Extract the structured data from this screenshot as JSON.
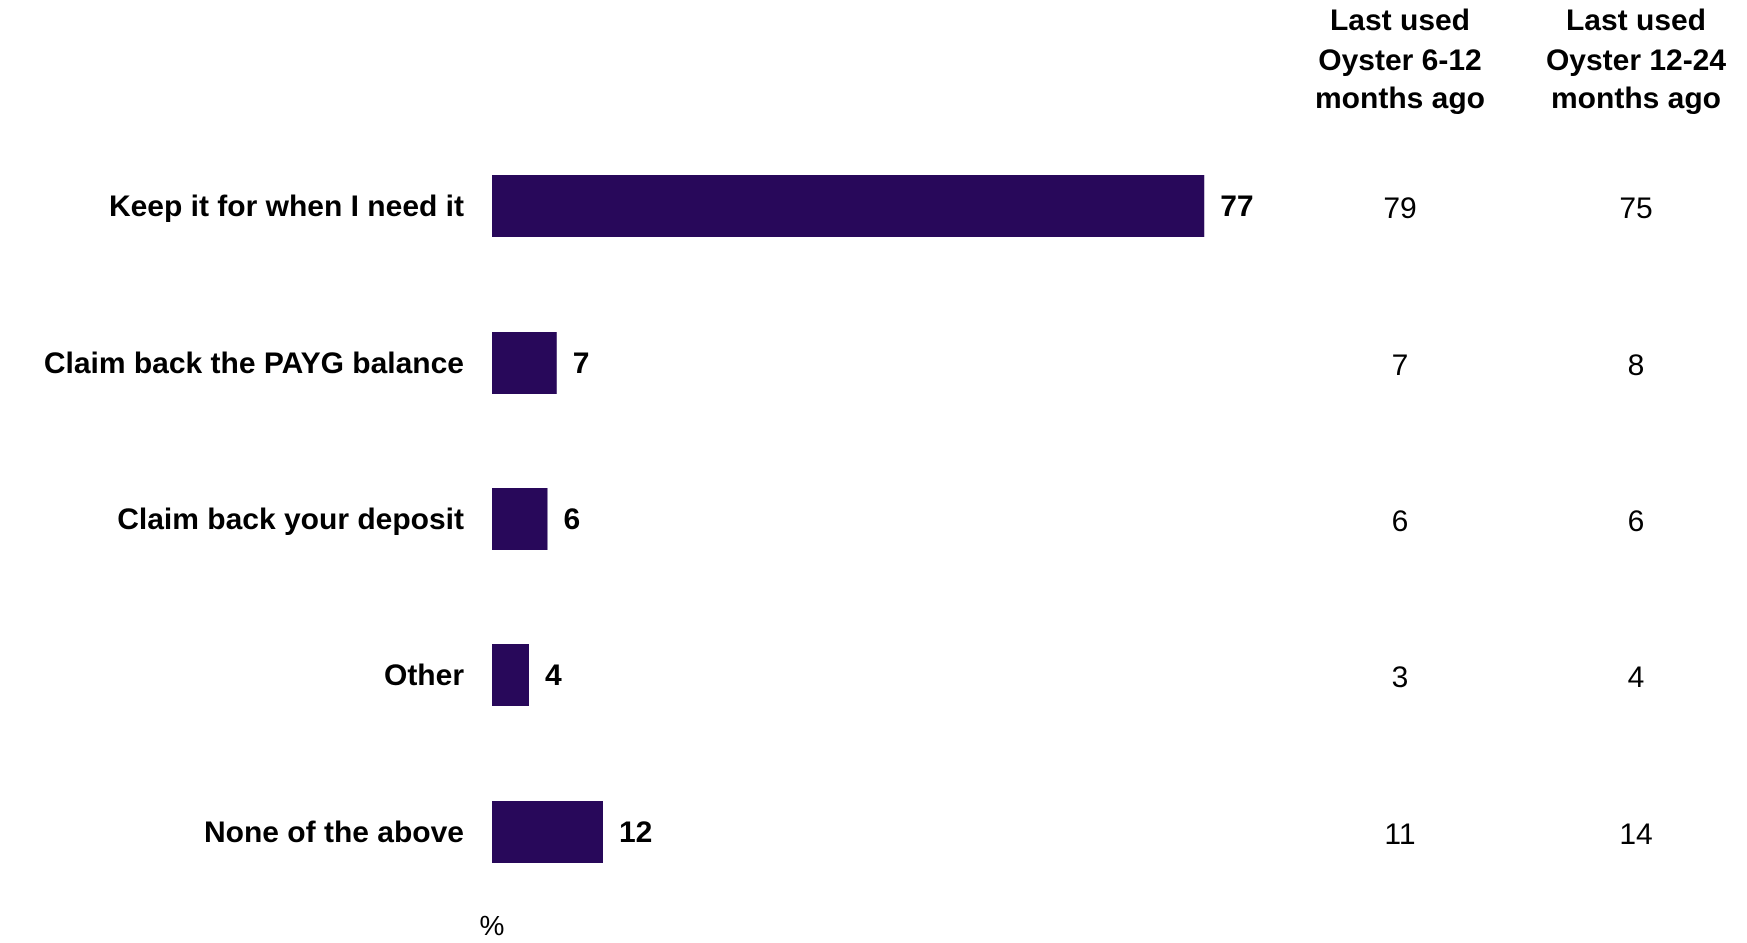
{
  "chart_data": {
    "type": "bar",
    "orientation": "horizontal",
    "unit": "%",
    "categories": [
      "Keep it for when I need it",
      "Claim back the PAYG balance",
      "Claim back your deposit",
      "Other",
      "None of the above"
    ],
    "values": [
      77,
      7,
      6,
      4,
      12
    ],
    "bar_color": "#28085a",
    "xlim": [
      0,
      100
    ],
    "grid": false,
    "table_columns": [
      {
        "header": [
          "Last used",
          "Oyster 6-12",
          "months ago"
        ],
        "values": [
          79,
          7,
          6,
          3,
          11
        ]
      },
      {
        "header": [
          "Last used",
          "Oyster 12-24",
          "months ago"
        ],
        "values": [
          75,
          8,
          6,
          4,
          14
        ]
      }
    ]
  }
}
